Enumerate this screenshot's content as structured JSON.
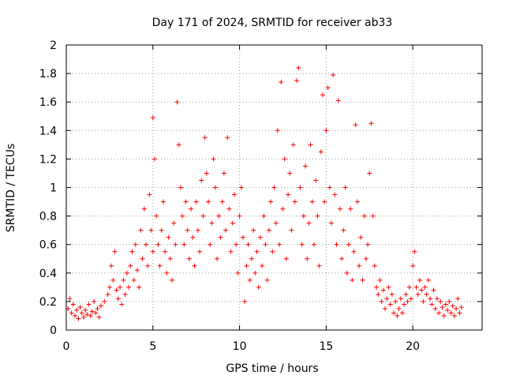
{
  "chart_data": {
    "type": "scatter",
    "title": "Day 171 of 2024, SRMTID for receiver ab33",
    "xlabel": "GPS time / hours",
    "ylabel": "SRMTID / TECUs",
    "xlim": [
      0,
      24
    ],
    "ylim": [
      0,
      2
    ],
    "xticks": [
      0,
      5,
      10,
      15,
      20
    ],
    "xtick_labels": [
      "0",
      "5",
      "10",
      "15",
      "20"
    ],
    "yticks": [
      0,
      0.2,
      0.4,
      0.6,
      0.8,
      1,
      1.2,
      1.4,
      1.6,
      1.8,
      2
    ],
    "ytick_labels": [
      "0",
      "0.2",
      "0.4",
      "0.6",
      "0.8",
      "1",
      "1.2",
      "1.4",
      "1.6",
      "1.8",
      "2"
    ],
    "grid": true,
    "marker": "+",
    "marker_color": "#ff0000",
    "series": [
      {
        "name": "SRMTID",
        "points": [
          [
            0.1,
            0.15
          ],
          [
            0.2,
            0.22
          ],
          [
            0.3,
            0.12
          ],
          [
            0.4,
            0.18
          ],
          [
            0.5,
            0.1
          ],
          [
            0.6,
            0.14
          ],
          [
            0.7,
            0.08
          ],
          [
            0.8,
            0.16
          ],
          [
            0.9,
            0.12
          ],
          [
            1.0,
            0.09
          ],
          [
            1.1,
            0.14
          ],
          [
            1.2,
            0.11
          ],
          [
            1.3,
            0.18
          ],
          [
            1.4,
            0.1
          ],
          [
            1.5,
            0.13
          ],
          [
            1.6,
            0.2
          ],
          [
            1.7,
            0.12
          ],
          [
            1.8,
            0.15
          ],
          [
            1.9,
            0.09
          ],
          [
            2.0,
            0.17
          ],
          [
            2.2,
            0.2
          ],
          [
            2.4,
            0.25
          ],
          [
            2.5,
            0.3
          ],
          [
            2.6,
            0.45
          ],
          [
            2.7,
            0.35
          ],
          [
            2.8,
            0.55
          ],
          [
            2.9,
            0.28
          ],
          [
            3.0,
            0.22
          ],
          [
            3.1,
            0.3
          ],
          [
            3.2,
            0.18
          ],
          [
            3.3,
            0.35
          ],
          [
            3.4,
            0.25
          ],
          [
            3.5,
            0.4
          ],
          [
            3.6,
            0.3
          ],
          [
            3.7,
            0.45
          ],
          [
            3.8,
            0.55
          ],
          [
            3.9,
            0.35
          ],
          [
            4.0,
            0.6
          ],
          [
            4.1,
            0.42
          ],
          [
            4.2,
            0.3
          ],
          [
            4.3,
            0.7
          ],
          [
            4.4,
            0.5
          ],
          [
            4.5,
            0.85
          ],
          [
            4.6,
            0.6
          ],
          [
            4.7,
            0.45
          ],
          [
            4.8,
            0.95
          ],
          [
            4.9,
            0.7
          ],
          [
            5.0,
            0.55
          ],
          [
            5.0,
            1.49
          ],
          [
            5.1,
            1.2
          ],
          [
            5.2,
            0.8
          ],
          [
            5.3,
            0.6
          ],
          [
            5.4,
            0.45
          ],
          [
            5.5,
            0.7
          ],
          [
            5.6,
            0.9
          ],
          [
            5.7,
            0.55
          ],
          [
            5.8,
            0.4
          ],
          [
            5.9,
            0.65
          ],
          [
            6.0,
            0.5
          ],
          [
            6.1,
            0.35
          ],
          [
            6.2,
            0.75
          ],
          [
            6.3,
            0.6
          ],
          [
            6.4,
            1.6
          ],
          [
            6.5,
            1.3
          ],
          [
            6.6,
            1.0
          ],
          [
            6.7,
            0.8
          ],
          [
            6.8,
            0.6
          ],
          [
            6.9,
            0.9
          ],
          [
            7.0,
            0.7
          ],
          [
            7.1,
            0.5
          ],
          [
            7.2,
            0.85
          ],
          [
            7.3,
            0.65
          ],
          [
            7.4,
            0.45
          ],
          [
            7.5,
            0.9
          ],
          [
            7.6,
            0.7
          ],
          [
            7.7,
            0.55
          ],
          [
            7.8,
            1.05
          ],
          [
            7.9,
            0.8
          ],
          [
            8.0,
            1.35
          ],
          [
            8.1,
            1.1
          ],
          [
            8.2,
            0.9
          ],
          [
            8.3,
            0.6
          ],
          [
            8.4,
            0.75
          ],
          [
            8.5,
            1.2
          ],
          [
            8.6,
            1.0
          ],
          [
            8.7,
            0.5
          ],
          [
            8.8,
            0.8
          ],
          [
            8.9,
            0.65
          ],
          [
            9.0,
            0.9
          ],
          [
            9.1,
            1.1
          ],
          [
            9.2,
            0.7
          ],
          [
            9.3,
            1.35
          ],
          [
            9.4,
            0.85
          ],
          [
            9.5,
            0.55
          ],
          [
            9.6,
            0.75
          ],
          [
            9.7,
            0.95
          ],
          [
            9.8,
            0.6
          ],
          [
            9.9,
            0.4
          ],
          [
            10.0,
            0.8
          ],
          [
            10.1,
            1.0
          ],
          [
            10.2,
            0.65
          ],
          [
            10.3,
            0.2
          ],
          [
            10.4,
            0.45
          ],
          [
            10.5,
            0.6
          ],
          [
            10.6,
            0.35
          ],
          [
            10.7,
            0.5
          ],
          [
            10.8,
            0.7
          ],
          [
            10.9,
            0.4
          ],
          [
            11.0,
            0.55
          ],
          [
            11.1,
            0.3
          ],
          [
            11.2,
            0.65
          ],
          [
            11.3,
            0.45
          ],
          [
            11.4,
            0.8
          ],
          [
            11.5,
            0.6
          ],
          [
            11.6,
            0.35
          ],
          [
            11.7,
            0.7
          ],
          [
            11.8,
            0.9
          ],
          [
            11.9,
            0.55
          ],
          [
            12.0,
            1.0
          ],
          [
            12.1,
            0.75
          ],
          [
            12.2,
            1.4
          ],
          [
            12.3,
            0.6
          ],
          [
            12.4,
            1.74
          ],
          [
            12.5,
            0.85
          ],
          [
            12.6,
            1.2
          ],
          [
            12.7,
            0.5
          ],
          [
            12.8,
            0.95
          ],
          [
            12.9,
            1.1
          ],
          [
            13.0,
            0.7
          ],
          [
            13.1,
            1.3
          ],
          [
            13.2,
            0.9
          ],
          [
            13.3,
            1.75
          ],
          [
            13.4,
            1.84
          ],
          [
            13.5,
            1.0
          ],
          [
            13.6,
            0.6
          ],
          [
            13.7,
            0.8
          ],
          [
            13.8,
            1.15
          ],
          [
            13.9,
            0.5
          ],
          [
            14.0,
            0.75
          ],
          [
            14.1,
            1.3
          ],
          [
            14.2,
            0.9
          ],
          [
            14.3,
            0.6
          ],
          [
            14.4,
            1.05
          ],
          [
            14.5,
            0.8
          ],
          [
            14.6,
            0.45
          ],
          [
            14.7,
            1.25
          ],
          [
            14.8,
            1.65
          ],
          [
            14.9,
            0.9
          ],
          [
            15.0,
            1.4
          ],
          [
            15.1,
            1.7
          ],
          [
            15.2,
            1.0
          ],
          [
            15.3,
            0.75
          ],
          [
            15.4,
            1.79
          ],
          [
            15.5,
            0.95
          ],
          [
            15.6,
            0.6
          ],
          [
            15.7,
            1.61
          ],
          [
            15.8,
            0.85
          ],
          [
            15.9,
            0.5
          ],
          [
            16.0,
            0.7
          ],
          [
            16.1,
            1.0
          ],
          [
            16.2,
            0.4
          ],
          [
            16.3,
            0.6
          ],
          [
            16.4,
            0.85
          ],
          [
            16.5,
            0.35
          ],
          [
            16.6,
            0.55
          ],
          [
            16.7,
            1.44
          ],
          [
            16.8,
            0.9
          ],
          [
            16.9,
            0.45
          ],
          [
            17.0,
            0.65
          ],
          [
            17.1,
            0.35
          ],
          [
            17.2,
            0.8
          ],
          [
            17.3,
            0.5
          ],
          [
            17.4,
            0.6
          ],
          [
            17.5,
            1.1
          ],
          [
            17.6,
            1.45
          ],
          [
            17.7,
            0.8
          ],
          [
            17.8,
            0.45
          ],
          [
            17.9,
            0.3
          ],
          [
            18.0,
            0.25
          ],
          [
            18.1,
            0.35
          ],
          [
            18.2,
            0.2
          ],
          [
            18.3,
            0.28
          ],
          [
            18.4,
            0.15
          ],
          [
            18.5,
            0.22
          ],
          [
            18.6,
            0.3
          ],
          [
            18.7,
            0.18
          ],
          [
            18.8,
            0.25
          ],
          [
            18.9,
            0.12
          ],
          [
            19.0,
            0.2
          ],
          [
            19.1,
            0.1
          ],
          [
            19.2,
            0.15
          ],
          [
            19.3,
            0.22
          ],
          [
            19.4,
            0.12
          ],
          [
            19.5,
            0.18
          ],
          [
            19.6,
            0.25
          ],
          [
            19.7,
            0.2
          ],
          [
            19.8,
            0.3
          ],
          [
            19.9,
            0.22
          ],
          [
            20.0,
            0.45
          ],
          [
            20.1,
            0.55
          ],
          [
            20.2,
            0.3
          ],
          [
            20.3,
            0.25
          ],
          [
            20.4,
            0.35
          ],
          [
            20.5,
            0.28
          ],
          [
            20.6,
            0.2
          ],
          [
            20.7,
            0.3
          ],
          [
            20.8,
            0.25
          ],
          [
            20.9,
            0.35
          ],
          [
            21.0,
            0.22
          ],
          [
            21.1,
            0.18
          ],
          [
            21.2,
            0.28
          ],
          [
            21.3,
            0.15
          ],
          [
            21.4,
            0.22
          ],
          [
            21.5,
            0.12
          ],
          [
            21.6,
            0.2
          ],
          [
            21.7,
            0.16
          ],
          [
            21.8,
            0.1
          ],
          [
            21.9,
            0.18
          ],
          [
            22.0,
            0.14
          ],
          [
            22.1,
            0.2
          ],
          [
            22.2,
            0.12
          ],
          [
            22.3,
            0.17
          ],
          [
            22.4,
            0.1
          ],
          [
            22.5,
            0.15
          ],
          [
            22.6,
            0.22
          ],
          [
            22.7,
            0.12
          ],
          [
            22.8,
            0.16
          ]
        ]
      }
    ]
  }
}
